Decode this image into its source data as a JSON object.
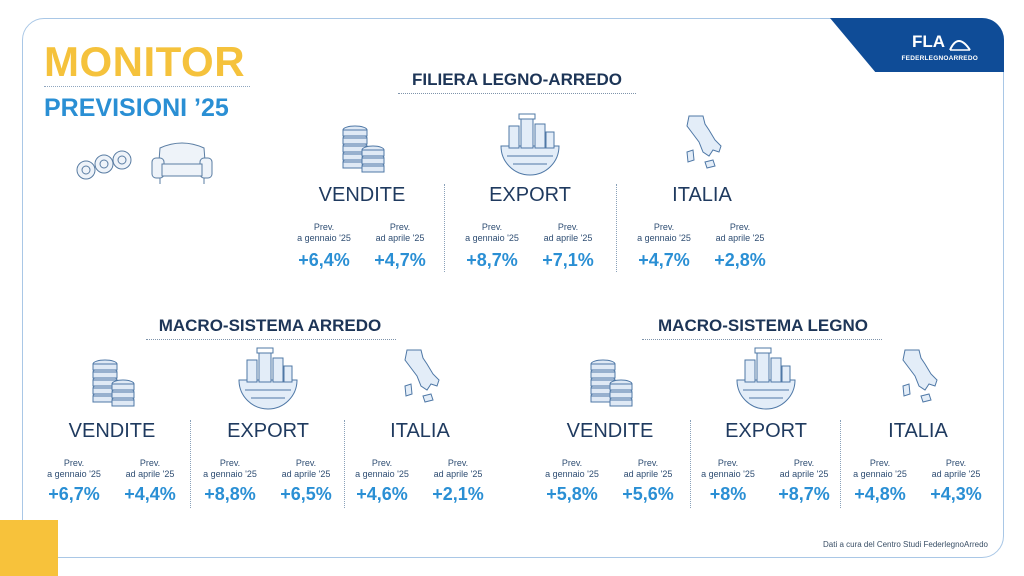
{
  "title": {
    "main": "MONITOR",
    "sub": "PREVISIONI ’25"
  },
  "brand": {
    "logo": "FLA",
    "tagline": "FEDERLEGNOARREDO",
    "color": "#0f4c97"
  },
  "accent": {
    "yellow": "#f5c23c",
    "blue": "#2a8fd4",
    "navy": "#1d3557"
  },
  "footer": "Dati a cura del Centro Studi FederlegnoArredo",
  "prev_labels": {
    "jan_line1": "Prev.",
    "jan_line2": "a gennaio '25",
    "apr_line1": "Prev.",
    "apr_line2": "ad aprile '25"
  },
  "sections": [
    {
      "title": "FILIERA LEGNO-ARREDO",
      "metrics": [
        {
          "name": "VENDITE",
          "icon": "coin-stack-icon",
          "jan": "+6,4%",
          "apr": "+4,7%"
        },
        {
          "name": "EXPORT",
          "icon": "globe-city-icon",
          "jan": "+8,7%",
          "apr": "+7,1%"
        },
        {
          "name": "ITALIA",
          "icon": "italy-map-icon",
          "jan": "+4,7%",
          "apr": "+2,8%"
        }
      ]
    },
    {
      "title": "MACRO-SISTEMA ARREDO",
      "metrics": [
        {
          "name": "VENDITE",
          "icon": "coin-stack-icon",
          "jan": "+6,7%",
          "apr": "+4,4%"
        },
        {
          "name": "EXPORT",
          "icon": "globe-city-icon",
          "jan": "+8,8%",
          "apr": "+6,5%"
        },
        {
          "name": "ITALIA",
          "icon": "italy-map-icon",
          "jan": "+4,6%",
          "apr": "+2,1%"
        }
      ]
    },
    {
      "title": "MACRO-SISTEMA LEGNO",
      "metrics": [
        {
          "name": "VENDITE",
          "icon": "coin-stack-icon",
          "jan": "+5,8%",
          "apr": "+5,6%"
        },
        {
          "name": "EXPORT",
          "icon": "globe-city-icon",
          "jan": "+8%",
          "apr": "+8,7%"
        },
        {
          "name": "ITALIA",
          "icon": "italy-map-icon",
          "jan": "+4,8%",
          "apr": "+4,3%"
        }
      ]
    }
  ]
}
